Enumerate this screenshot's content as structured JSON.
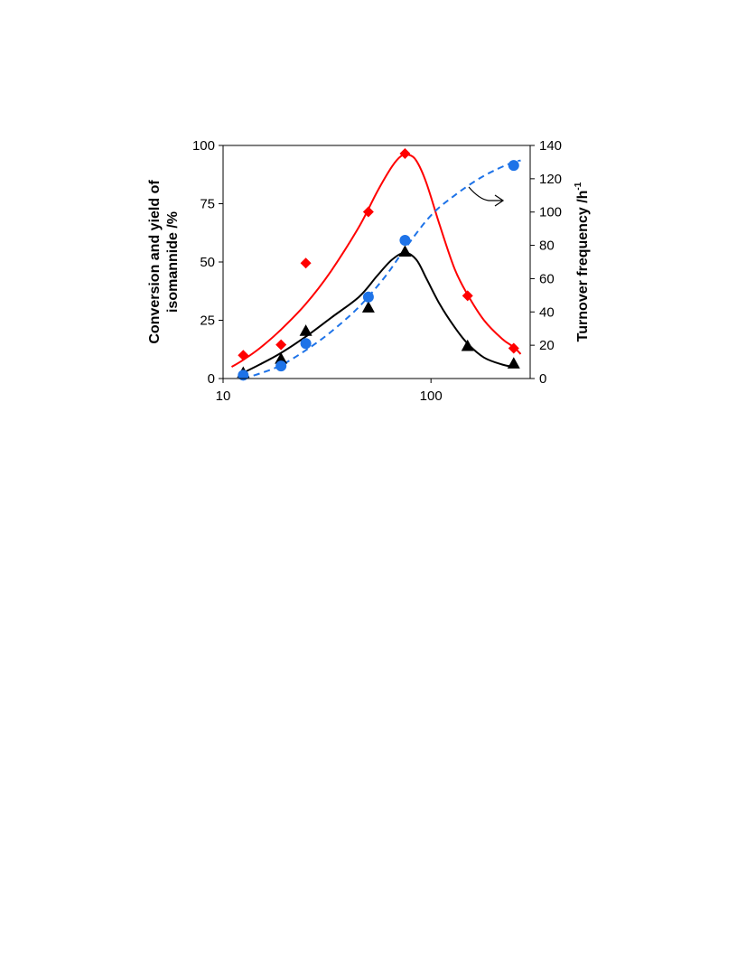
{
  "chart_data": {
    "type": "scatter",
    "x_scale": "log",
    "xlim": [
      10,
      300
    ],
    "x_ticks": [
      {
        "value": 10,
        "label": "10"
      },
      {
        "value": 100,
        "label": "100"
      }
    ],
    "xlabel": "",
    "y_left": {
      "label_line1": "Conversion and yield of",
      "label_line2": "isomannide /%",
      "lim": [
        0,
        100
      ],
      "ticks": [
        {
          "value": 0,
          "label": "0"
        },
        {
          "value": 25,
          "label": "25"
        },
        {
          "value": 50,
          "label": "50"
        },
        {
          "value": 75,
          "label": "75"
        },
        {
          "value": 100,
          "label": "100"
        }
      ]
    },
    "y_right": {
      "label": "Turnover frequency /h",
      "label_sup": "-1",
      "lim": [
        0,
        140
      ],
      "ticks": [
        {
          "value": 0,
          "label": "0"
        },
        {
          "value": 20,
          "label": "20"
        },
        {
          "value": 40,
          "label": "40"
        },
        {
          "value": 60,
          "label": "60"
        },
        {
          "value": 80,
          "label": "80"
        },
        {
          "value": 100,
          "label": "100"
        },
        {
          "value": 120,
          "label": "120"
        },
        {
          "value": 140,
          "label": "140"
        }
      ]
    },
    "series": [
      {
        "marker": "diamond",
        "color": "#ff0000",
        "axis": "left",
        "line_style": "solid",
        "x": [
          12.5,
          19,
          25,
          50,
          75,
          150,
          250
        ],
        "y": [
          10,
          14.5,
          49.5,
          71.5,
          96.5,
          35.5,
          13
        ]
      },
      {
        "marker": "triangle",
        "color": "#000000",
        "axis": "left",
        "line_style": "solid",
        "x": [
          12.5,
          19,
          25,
          50,
          75,
          150,
          250
        ],
        "y": [
          2.5,
          8.5,
          20.5,
          30.5,
          54.5,
          14,
          6.5
        ]
      },
      {
        "marker": "circle",
        "color": "#1e73e8",
        "axis": "right",
        "line_style": "dashed",
        "x": [
          12.5,
          19,
          25,
          50,
          75,
          250
        ],
        "y": [
          2,
          7.5,
          21,
          49,
          83,
          128
        ]
      }
    ],
    "fit_curves": [
      {
        "color": "#ff0000",
        "axis": "left",
        "dash": false,
        "x": [
          11,
          12.5,
          15,
          19,
          25,
          33,
          45,
          55,
          65,
          72,
          78,
          85,
          95,
          110,
          130,
          150,
          180,
          220,
          250,
          270
        ],
        "y": [
          5,
          8,
          13,
          21,
          32,
          46,
          65,
          80,
          91,
          95.5,
          96,
          93.5,
          84,
          66,
          47,
          36,
          25,
          17,
          13.5,
          10.5
        ]
      },
      {
        "color": "#000000",
        "axis": "left",
        "dash": false,
        "x": [
          12.5,
          15,
          19,
          25,
          33,
          45,
          55,
          65,
          75,
          85,
          95,
          110,
          130,
          150,
          180,
          220,
          250
        ],
        "y": [
          2.5,
          6,
          11,
          18,
          26,
          35,
          44,
          51,
          54,
          51,
          43,
          32,
          22,
          15,
          9,
          6,
          5
        ]
      },
      {
        "color": "#1e73e8",
        "axis": "right",
        "dash": true,
        "x": [
          12.5,
          15,
          19,
          25,
          33,
          45,
          60,
          75,
          100,
          130,
          170,
          210,
          250,
          270
        ],
        "y": [
          0,
          3,
          8,
          17,
          28,
          43,
          61,
          78,
          98,
          110,
          120,
          126,
          130,
          131
        ]
      }
    ],
    "annotation_arrow": {
      "direction": "right",
      "points_to_axis": "right"
    }
  }
}
